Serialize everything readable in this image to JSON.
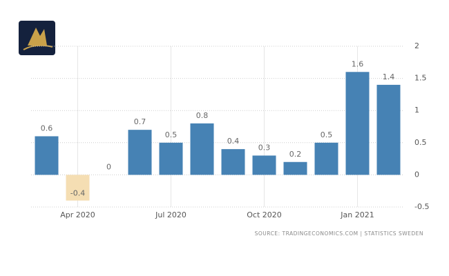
{
  "chart_data": {
    "type": "bar",
    "categories": [
      null,
      "Apr 2020",
      null,
      null,
      "Jul 2020",
      null,
      null,
      "Oct 2020",
      null,
      null,
      "Jan 2021",
      null
    ],
    "values": [
      0.6,
      -0.4,
      0,
      0.7,
      0.5,
      0.8,
      0.4,
      0.3,
      0.2,
      0.5,
      1.6,
      1.4
    ],
    "color": "#4682b4",
    "negative_color": "#f5deb3",
    "ylim": [
      -0.5,
      2
    ],
    "yticks": [
      2,
      1.5,
      1,
      0.5,
      0,
      -0.5
    ],
    "grid": true,
    "source": "SOURCE: TRADINGECONOMICS.COM | STATISTICS SWEDEN"
  }
}
